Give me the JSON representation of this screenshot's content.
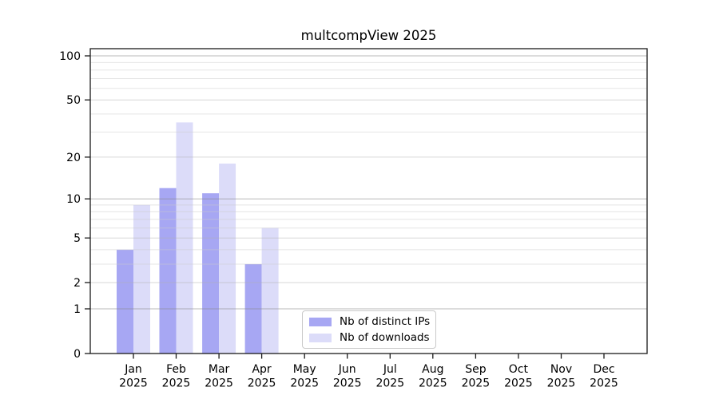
{
  "chart_data": {
    "type": "bar",
    "title": "multcompView 2025",
    "x_year": "2025",
    "categories": [
      "Jan",
      "Feb",
      "Mar",
      "Apr",
      "May",
      "Jun",
      "Jul",
      "Aug",
      "Sep",
      "Oct",
      "Nov",
      "Dec"
    ],
    "series": [
      {
        "name": "Nb of distinct IPs",
        "color": "#a7a7f3",
        "values": [
          4,
          12,
          11,
          3,
          0,
          0,
          0,
          0,
          0,
          0,
          0,
          0
        ]
      },
      {
        "name": "Nb of downloads",
        "color": "#dcdcf9",
        "values": [
          9,
          35,
          18,
          6,
          0,
          0,
          0,
          0,
          0,
          0,
          0,
          0
        ]
      }
    ],
    "y_scale": "log1p",
    "ylim": [
      0,
      113
    ],
    "y_ticks": [
      0,
      1,
      2,
      5,
      10,
      20,
      50,
      100
    ],
    "y_major_gridlines": [
      1,
      10,
      100
    ],
    "y_medium_gridlines": [
      2,
      5,
      20,
      50
    ],
    "y_minor_gridlines": [
      3,
      4,
      6,
      7,
      8,
      9,
      30,
      40,
      60,
      70,
      80,
      90
    ],
    "grid": true,
    "legend_position": "lower center"
  }
}
